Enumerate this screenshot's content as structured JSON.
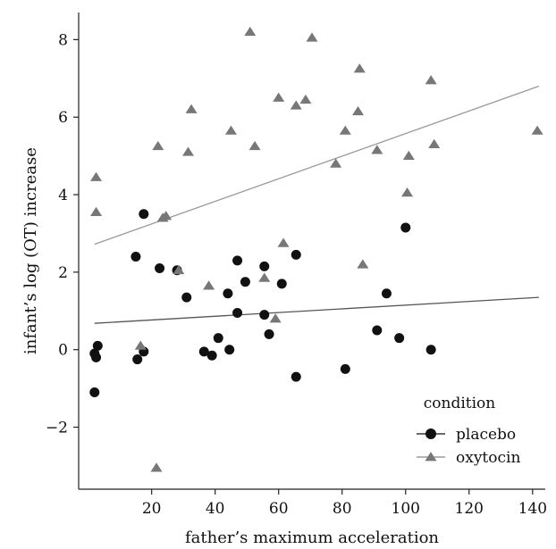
{
  "chart_data": {
    "type": "scatter",
    "xlabel": "father’s maximum acceleration",
    "ylabel": "infant’s log (OT) increase",
    "xlim": [
      -3,
      144
    ],
    "ylim": [
      -3.6,
      8.7
    ],
    "x_ticks": [
      20,
      40,
      60,
      80,
      100,
      120,
      140
    ],
    "y_ticks": [
      -2,
      0,
      2,
      4,
      6,
      8
    ],
    "grid": false,
    "legend": {
      "title": "condition",
      "position": "bottom-right",
      "entries": [
        "placebo",
        "oxytocin"
      ]
    },
    "series": [
      {
        "name": "placebo",
        "marker": "circle",
        "color": "#111111",
        "points": [
          [
            2,
            -0.1
          ],
          [
            2.5,
            -0.2
          ],
          [
            3,
            0.1
          ],
          [
            2,
            -1.1
          ],
          [
            15,
            2.4
          ],
          [
            15.5,
            -0.25
          ],
          [
            17.5,
            3.5
          ],
          [
            17.5,
            -0.05
          ],
          [
            22.5,
            2.1
          ],
          [
            28,
            2.05
          ],
          [
            31,
            1.35
          ],
          [
            36.5,
            -0.05
          ],
          [
            39,
            -0.15
          ],
          [
            41,
            0.3
          ],
          [
            44,
            1.45
          ],
          [
            44.5,
            0.0
          ],
          [
            47,
            2.3
          ],
          [
            47,
            0.95
          ],
          [
            49.5,
            1.75
          ],
          [
            55.5,
            0.9
          ],
          [
            55.5,
            2.15
          ],
          [
            57,
            0.4
          ],
          [
            61,
            1.7
          ],
          [
            65.5,
            2.45
          ],
          [
            65.5,
            -0.7
          ],
          [
            81,
            -0.5
          ],
          [
            91,
            0.5
          ],
          [
            94,
            1.45
          ],
          [
            98,
            0.3
          ],
          [
            100,
            3.15
          ],
          [
            108,
            0.0
          ]
        ],
        "trend": {
          "x": [
            2,
            142
          ],
          "y": [
            0.68,
            1.35
          ],
          "color": "#555555"
        }
      },
      {
        "name": "oxytocin",
        "marker": "triangle",
        "color": "#777777",
        "points": [
          [
            2.5,
            4.45
          ],
          [
            2.5,
            3.55
          ],
          [
            16.5,
            0.1
          ],
          [
            21.5,
            -3.05
          ],
          [
            22,
            5.25
          ],
          [
            23.5,
            3.4
          ],
          [
            24.5,
            3.45
          ],
          [
            28.5,
            2.05
          ],
          [
            31.5,
            5.1
          ],
          [
            32.5,
            6.2
          ],
          [
            38,
            1.65
          ],
          [
            45,
            5.65
          ],
          [
            51,
            8.2
          ],
          [
            52.5,
            5.25
          ],
          [
            55.5,
            1.85
          ],
          [
            59,
            0.8
          ],
          [
            60,
            6.5
          ],
          [
            61.5,
            2.75
          ],
          [
            65.5,
            6.3
          ],
          [
            68.5,
            6.45
          ],
          [
            70.5,
            8.05
          ],
          [
            78,
            4.8
          ],
          [
            81,
            5.65
          ],
          [
            85,
            6.15
          ],
          [
            85.5,
            7.25
          ],
          [
            86.5,
            2.2
          ],
          [
            91,
            5.15
          ],
          [
            100.5,
            4.05
          ],
          [
            101,
            5.0
          ],
          [
            108,
            6.95
          ],
          [
            109,
            5.3
          ],
          [
            141.5,
            5.65
          ]
        ],
        "trend": {
          "x": [
            2,
            142
          ],
          "y": [
            2.72,
            6.8
          ],
          "color": "#999999"
        }
      }
    ]
  }
}
